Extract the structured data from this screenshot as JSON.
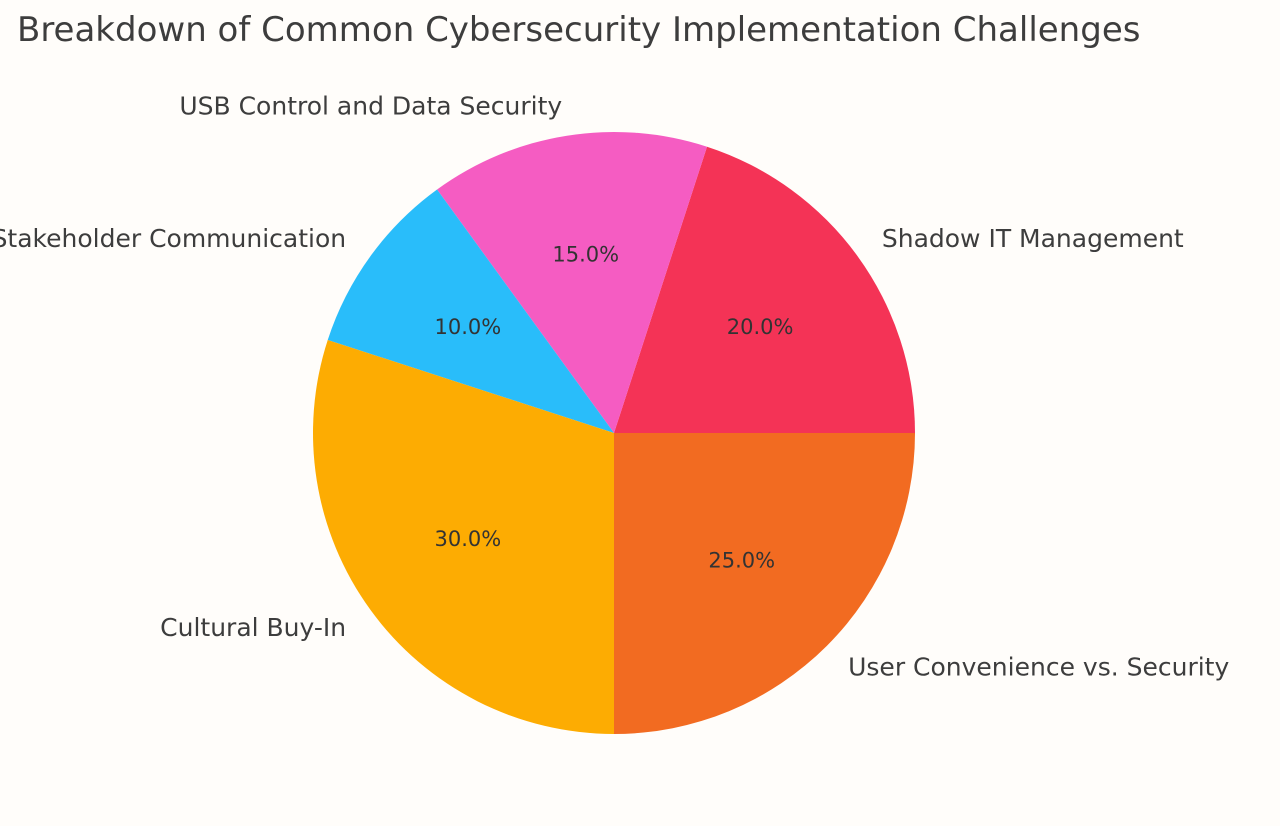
{
  "chart_data": {
    "type": "pie",
    "title": "Breakdown of Common Cybersecurity Implementation Challenges",
    "start_angle_deg": 0,
    "direction": "counterclockwise",
    "slices": [
      {
        "label": "Shadow IT Management",
        "value": 20.0,
        "pct_text": "20.0%",
        "color": "#f43356"
      },
      {
        "label": "USB Control and Data Security",
        "value": 15.0,
        "pct_text": "15.0%",
        "color": "#f55cc2"
      },
      {
        "label": "Stakeholder Communication",
        "value": 10.0,
        "pct_text": "10.0%",
        "color": "#29bdfa"
      },
      {
        "label": "Cultural Buy-In",
        "value": 30.0,
        "pct_text": "30.0%",
        "color": "#fdac02"
      },
      {
        "label": "User Convenience vs. Security",
        "value": 25.0,
        "pct_text": "25.0%",
        "color": "#f26b21"
      }
    ]
  }
}
